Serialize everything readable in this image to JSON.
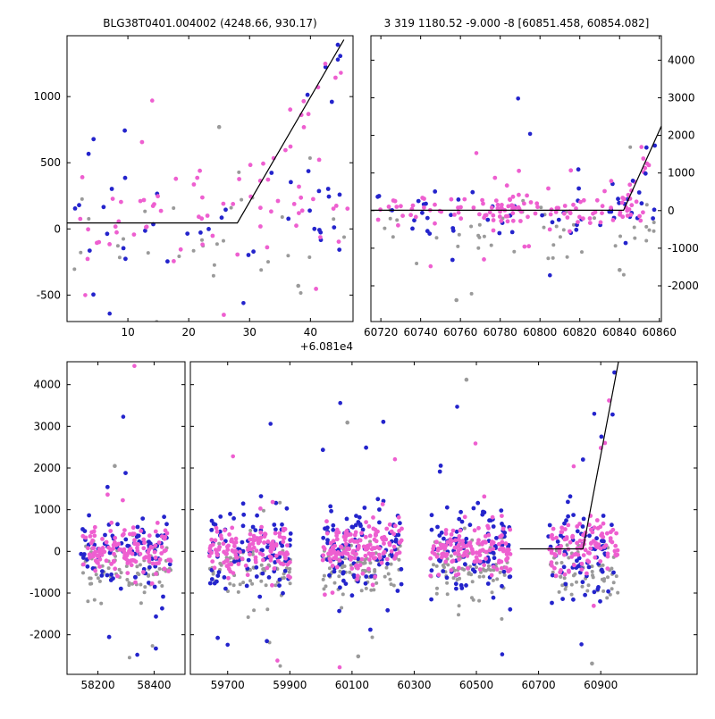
{
  "palette": {
    "magenta": "#ee5fd0",
    "blue": "#2424cc",
    "gray": "#9a9a9a",
    "line": "#000000",
    "axis": "#000000",
    "text": "#000000",
    "background": "#ffffff"
  },
  "chart_data": [
    {
      "type": "scatter",
      "title": "BLG38T0401.004002 (4248.66, 930.17)",
      "x_offset_label": "+6.081e4",
      "xlim": [
        0,
        47
      ],
      "ylim": [
        -700,
        1460
      ],
      "x_ticks": [
        10,
        20,
        30,
        40
      ],
      "y_ticks": [
        -500,
        0,
        500,
        1000
      ],
      "y_tick_side": "left",
      "grid": false,
      "model_line": [
        [
          0,
          45
        ],
        [
          28,
          45
        ],
        [
          45.5,
          1430
        ]
      ],
      "layout": {
        "py": [
          40,
          360
        ],
        "x_segments": [
          {
            "domain": [
              0,
              47
            ],
            "px": [
              75,
              395
            ]
          }
        ]
      },
      "scatter": [
        {
          "color": "gray",
          "seed": 101,
          "n": 32,
          "x": [
            1,
            46
          ],
          "mean": -140,
          "sd": 230,
          "out_frac": 0.09,
          "out_sd": 420,
          "r": 2
        },
        {
          "color": "blue",
          "seed": 102,
          "n": 38,
          "x": [
            1,
            46
          ],
          "mean": 60,
          "sd": 280,
          "out_frac": 0.12,
          "out_sd": 560,
          "r": 2.4
        },
        {
          "color": "magenta",
          "seed": 103,
          "n": 60,
          "x": [
            1,
            47
          ],
          "mean": 180,
          "sd": 180,
          "out_frac": 0.08,
          "out_sd": 420,
          "r": 2.4
        },
        {
          "color": "blue",
          "seed": 104,
          "n": 6,
          "x": [
            32,
            45.5
          ],
          "trend": true,
          "sd": 170,
          "r": 2.4
        },
        {
          "color": "magenta",
          "seed": 105,
          "n": 15,
          "x": [
            30,
            45.5
          ],
          "trend": true,
          "sd": 150,
          "r": 2.4
        }
      ],
      "extra_points": [
        {
          "color": "magenta",
          "x": 14,
          "y": 970
        },
        {
          "color": "gray",
          "x": 25,
          "y": 770
        },
        {
          "color": "blue",
          "x": 44.5,
          "y": 1280
        },
        {
          "color": "magenta",
          "x": 45,
          "y": 1180
        },
        {
          "color": "blue",
          "x": 7,
          "y": -640
        },
        {
          "color": "magenta",
          "x": 3,
          "y": -500
        },
        {
          "color": "gray",
          "x": 38,
          "y": -430
        },
        {
          "color": "blue",
          "x": 29,
          "y": -560
        }
      ]
    },
    {
      "type": "scatter",
      "title": "3 319 1180.52 -9.000 -8 [60851.458, 60854.082]",
      "xlim": [
        60715,
        60861
      ],
      "ylim": [
        -2950,
        4650
      ],
      "x_ticks": [
        60720,
        60740,
        60760,
        60780,
        60800,
        60820,
        60840,
        60860
      ],
      "y_ticks": [
        -2000,
        -1000,
        0,
        1000,
        2000,
        3000,
        4000
      ],
      "y_tick_side": "right",
      "grid": false,
      "model_line": [
        [
          60715,
          10
        ],
        [
          60842,
          10
        ],
        [
          60861,
          2250
        ]
      ],
      "layout": {
        "py": [
          40,
          360
        ],
        "x_segments": [
          {
            "domain": [
              60715,
              60861
            ],
            "px": [
              415,
              740
            ]
          }
        ]
      },
      "scatter": [
        {
          "color": "gray",
          "seed": 201,
          "n": 48,
          "x": [
            60720,
            60858
          ],
          "mean": -600,
          "sd": 420,
          "out_frac": 0.08,
          "out_sd": 1000,
          "r": 2
        },
        {
          "color": "blue",
          "seed": 202,
          "n": 55,
          "x": [
            60718,
            60858
          ],
          "mean": -50,
          "sd": 380,
          "out_frac": 0.12,
          "out_sd": 1000,
          "r": 2.4
        },
        {
          "color": "magenta",
          "seed": 203,
          "n": 45,
          "x": [
            60718,
            60782
          ],
          "mean": -30,
          "sd": 220,
          "out_frac": 0.08,
          "out_sd": 600,
          "r": 2.4
        },
        {
          "color": "magenta",
          "seed": 204,
          "n": 85,
          "x": [
            60775,
            60852
          ],
          "mean": -10,
          "sd": 230,
          "out_frac": 0.08,
          "out_sd": 650,
          "r": 2.4
        },
        {
          "color": "magenta",
          "seed": 205,
          "n": 13,
          "x": [
            60841,
            60859
          ],
          "trend": true,
          "sd": 230,
          "r": 2.4
        },
        {
          "color": "blue",
          "seed": 206,
          "n": 4,
          "x": [
            60843,
            60859
          ],
          "trend": true,
          "sd": 260,
          "r": 2.4
        }
      ],
      "extra_points": [
        {
          "color": "blue",
          "x": 60789,
          "y": 2980
        },
        {
          "color": "blue",
          "x": 60795,
          "y": 2040
        },
        {
          "color": "magenta",
          "x": 60768,
          "y": 1530
        },
        {
          "color": "magenta",
          "x": 60851,
          "y": 1690
        },
        {
          "color": "gray",
          "x": 60758,
          "y": -2380
        },
        {
          "color": "blue",
          "x": 60805,
          "y": -1720
        },
        {
          "color": "magenta",
          "x": 60745,
          "y": -1480
        },
        {
          "color": "gray",
          "x": 60840,
          "y": -1580
        }
      ]
    },
    {
      "type": "scatter",
      "title": "",
      "ylim": [
        -2950,
        4550
      ],
      "x_ticks": [
        58200,
        58400,
        59700,
        59900,
        60100,
        60300,
        60500,
        60700,
        60900
      ],
      "y_ticks": [
        -2000,
        -1000,
        0,
        1000,
        2000,
        3000,
        4000
      ],
      "y_tick_side": "left",
      "grid": false,
      "broken_x_axis": true,
      "model_line": [
        [
          60640,
          60
        ],
        [
          60843,
          60
        ],
        [
          60957,
          4550
        ]
      ],
      "layout": {
        "py": [
          405,
          755
        ],
        "x_segments": [
          {
            "domain": [
              58090,
              58510
            ],
            "px": [
              75,
              207
            ]
          },
          {
            "domain": [
              59580,
              61210
            ],
            "px": [
              213,
              780
            ]
          }
        ]
      },
      "scatter": [
        {
          "color": "gray",
          "seed": 301,
          "n": 80,
          "x": [
            58140,
            58460
          ],
          "mean": -420,
          "sd": 340,
          "out_frac": 0.07,
          "out_sd": 1100,
          "r": 2
        },
        {
          "color": "blue",
          "seed": 302,
          "n": 90,
          "x": [
            58140,
            58460
          ],
          "mean": 0,
          "sd": 520,
          "out_frac": 0.08,
          "out_sd": 1300,
          "r": 2.4
        },
        {
          "color": "magenta",
          "seed": 303,
          "n": 135,
          "x": [
            58140,
            58460
          ],
          "mean": 60,
          "sd": 280,
          "out_frac": 0.06,
          "out_sd": 1000,
          "r": 2.4
        },
        {
          "color": "gray",
          "seed": 304,
          "n": 80,
          "x": [
            59640,
            59905
          ],
          "mean": -420,
          "sd": 340,
          "out_frac": 0.07,
          "out_sd": 1100,
          "r": 2
        },
        {
          "color": "blue",
          "seed": 305,
          "n": 90,
          "x": [
            59640,
            59905
          ],
          "mean": 0,
          "sd": 520,
          "out_frac": 0.08,
          "out_sd": 1300,
          "r": 2.4
        },
        {
          "color": "magenta",
          "seed": 306,
          "n": 135,
          "x": [
            59640,
            59905
          ],
          "mean": 60,
          "sd": 280,
          "out_frac": 0.06,
          "out_sd": 1000,
          "r": 2.4
        },
        {
          "color": "gray",
          "seed": 307,
          "n": 90,
          "x": [
            60005,
            60260
          ],
          "mean": -420,
          "sd": 340,
          "out_frac": 0.07,
          "out_sd": 1100,
          "r": 2
        },
        {
          "color": "blue",
          "seed": 308,
          "n": 100,
          "x": [
            60005,
            60260
          ],
          "mean": 0,
          "sd": 520,
          "out_frac": 0.08,
          "out_sd": 1300,
          "r": 2.4
        },
        {
          "color": "magenta",
          "seed": 309,
          "n": 150,
          "x": [
            60005,
            60260
          ],
          "mean": 60,
          "sd": 280,
          "out_frac": 0.06,
          "out_sd": 1000,
          "r": 2.4
        },
        {
          "color": "gray",
          "seed": 310,
          "n": 85,
          "x": [
            60350,
            60610
          ],
          "mean": -420,
          "sd": 340,
          "out_frac": 0.07,
          "out_sd": 1100,
          "r": 2
        },
        {
          "color": "blue",
          "seed": 311,
          "n": 95,
          "x": [
            60350,
            60610
          ],
          "mean": 0,
          "sd": 520,
          "out_frac": 0.08,
          "out_sd": 1300,
          "r": 2.4
        },
        {
          "color": "magenta",
          "seed": 312,
          "n": 140,
          "x": [
            60350,
            60610
          ],
          "mean": 60,
          "sd": 280,
          "out_frac": 0.06,
          "out_sd": 1000,
          "r": 2.4
        },
        {
          "color": "gray",
          "seed": 313,
          "n": 60,
          "x": [
            60730,
            60955
          ],
          "mean": -420,
          "sd": 340,
          "out_frac": 0.07,
          "out_sd": 1100,
          "r": 2
        },
        {
          "color": "blue",
          "seed": 314,
          "n": 70,
          "x": [
            60730,
            60955
          ],
          "mean": 0,
          "sd": 520,
          "out_frac": 0.08,
          "out_sd": 1300,
          "r": 2.4
        },
        {
          "color": "magenta",
          "seed": 315,
          "n": 105,
          "x": [
            60730,
            60955
          ],
          "mean": 60,
          "sd": 280,
          "out_frac": 0.06,
          "out_sd": 1000,
          "r": 2.4
        },
        {
          "color": "magenta",
          "seed": 316,
          "n": 6,
          "x": [
            60845,
            60950
          ],
          "trend": true,
          "sd": 280,
          "r": 2.4
        },
        {
          "color": "blue",
          "seed": 317,
          "n": 3,
          "x": [
            60850,
            60950
          ],
          "trend": true,
          "sd": 350,
          "r": 2.4
        }
      ],
      "extra_points": [
        {
          "color": "magenta",
          "x": 58330,
          "y": 4450
        },
        {
          "color": "blue",
          "x": 58290,
          "y": 3230
        },
        {
          "color": "gray",
          "x": 58260,
          "y": 2050
        },
        {
          "color": "blue",
          "x": 58340,
          "y": -2480
        },
        {
          "color": "blue",
          "x": 59838,
          "y": 3060
        },
        {
          "color": "magenta",
          "x": 59717,
          "y": 2280
        },
        {
          "color": "magenta",
          "x": 59860,
          "y": -2620
        },
        {
          "color": "blue",
          "x": 59700,
          "y": -2240
        },
        {
          "color": "blue",
          "x": 60062,
          "y": 3560
        },
        {
          "color": "gray",
          "x": 60085,
          "y": 3090
        },
        {
          "color": "magenta",
          "x": 60238,
          "y": 2210
        },
        {
          "color": "gray",
          "x": 60120,
          "y": -2520
        },
        {
          "color": "magenta",
          "x": 60060,
          "y": -2780
        },
        {
          "color": "gray",
          "x": 60468,
          "y": 4120
        },
        {
          "color": "blue",
          "x": 60438,
          "y": 3470
        },
        {
          "color": "magenta",
          "x": 60497,
          "y": 2590
        },
        {
          "color": "blue",
          "x": 60583,
          "y": -2470
        },
        {
          "color": "blue",
          "x": 60879,
          "y": 3300
        },
        {
          "color": "magenta",
          "x": 60813,
          "y": 2040
        },
        {
          "color": "gray",
          "x": 60872,
          "y": -2690
        },
        {
          "color": "blue",
          "x": 60838,
          "y": -2230
        }
      ]
    }
  ]
}
